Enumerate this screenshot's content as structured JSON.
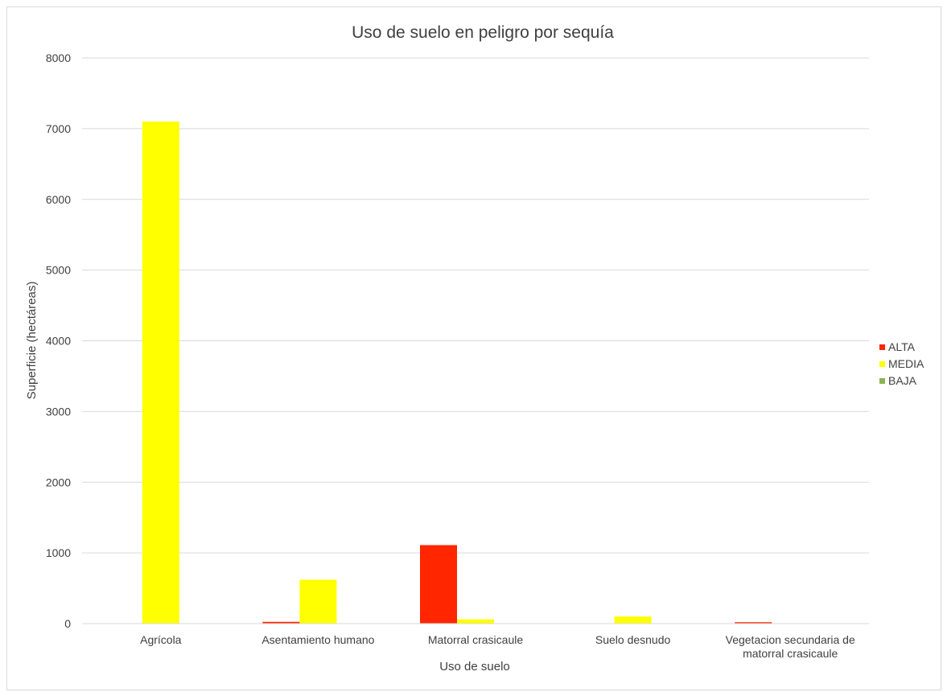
{
  "chart_data": {
    "type": "bar",
    "title": "Uso de suelo en peligro por sequía",
    "xlabel": "Uso de suelo",
    "ylabel": "Superficie (hectáreas)",
    "ylim": [
      0,
      8000
    ],
    "yticks": [
      0,
      1000,
      2000,
      3000,
      4000,
      5000,
      6000,
      7000,
      8000
    ],
    "grid": true,
    "legend_position": "right",
    "categories": [
      [
        "Agrícola"
      ],
      [
        "Asentamiento humano"
      ],
      [
        "Matorral crasicaule"
      ],
      [
        "Suelo desnudo"
      ],
      [
        "Vegetacion secundaria de",
        "matorral crasicaule"
      ]
    ],
    "series": [
      {
        "name": "ALTA",
        "color": "#ff2600",
        "values": [
          0,
          25,
          1110,
          0,
          20
        ]
      },
      {
        "name": "MEDIA",
        "color": "#ffff00",
        "values": [
          7100,
          620,
          60,
          100,
          0
        ]
      },
      {
        "name": "BAJA",
        "color": "#8db350",
        "values": [
          0,
          0,
          0,
          0,
          0
        ]
      }
    ]
  }
}
